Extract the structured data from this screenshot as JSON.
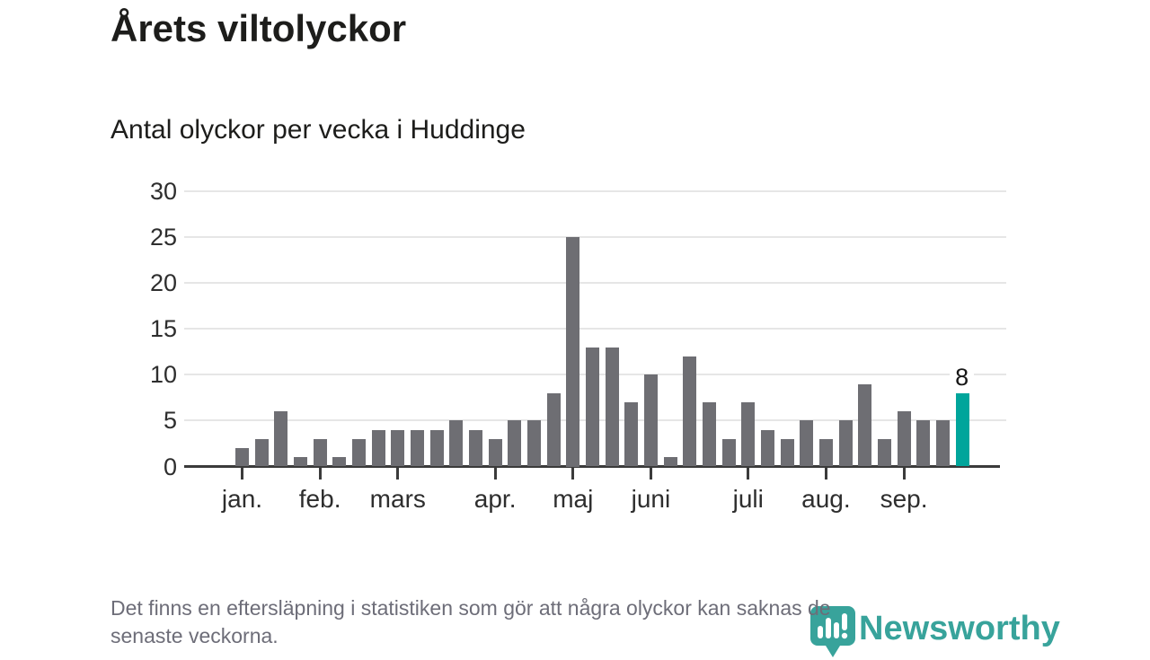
{
  "page": {
    "title": "Årets viltolyckor",
    "subtitle": "Antal olyckor per vecka i Huddinge",
    "note_line1": "Det finns en eftersläpning i statistiken som gör att några olyckor kan saknas de",
    "note_line2": "senaste veckorna.",
    "brand": "Newsworthy"
  },
  "colors": {
    "bar": "#6e6e73",
    "highlight": "#00a59b",
    "brand": "#38a39b",
    "grid": "#e6e6e6",
    "axis": "#3b3b3b",
    "title_text": "#1d1d1b",
    "note_text": "#6d6d78"
  },
  "chart_data": {
    "type": "bar",
    "title": "Årets viltolyckor",
    "subtitle": "Antal olyckor per vecka i Huddinge",
    "xlabel": "",
    "ylabel": "",
    "x_unit": "vecka",
    "x": [
      1,
      2,
      3,
      4,
      5,
      6,
      7,
      8,
      9,
      10,
      11,
      12,
      13,
      14,
      15,
      16,
      17,
      18,
      19,
      20,
      21,
      22,
      23,
      24,
      25,
      26,
      27,
      28,
      29,
      30,
      31,
      32,
      33,
      34,
      35,
      36,
      37,
      38
    ],
    "values": [
      2,
      3,
      6,
      1,
      3,
      1,
      3,
      4,
      4,
      4,
      4,
      5,
      4,
      3,
      5,
      5,
      8,
      25,
      13,
      13,
      7,
      10,
      1,
      12,
      7,
      3,
      7,
      4,
      3,
      5,
      3,
      5,
      9,
      3,
      6,
      5,
      5,
      8
    ],
    "highlight_index": 37,
    "highlight_label": "8",
    "ylim": [
      0,
      30
    ],
    "yticks": [
      0,
      5,
      10,
      15,
      20,
      25,
      30
    ],
    "month_ticks": [
      {
        "label": "jan.",
        "week": 1
      },
      {
        "label": "feb.",
        "week": 5
      },
      {
        "label": "mars",
        "week": 9
      },
      {
        "label": "apr.",
        "week": 14
      },
      {
        "label": "maj",
        "week": 18
      },
      {
        "label": "juni",
        "week": 22
      },
      {
        "label": "juli",
        "week": 27
      },
      {
        "label": "aug.",
        "week": 31
      },
      {
        "label": "sep.",
        "week": 35
      }
    ],
    "grid": true,
    "legend": null
  }
}
